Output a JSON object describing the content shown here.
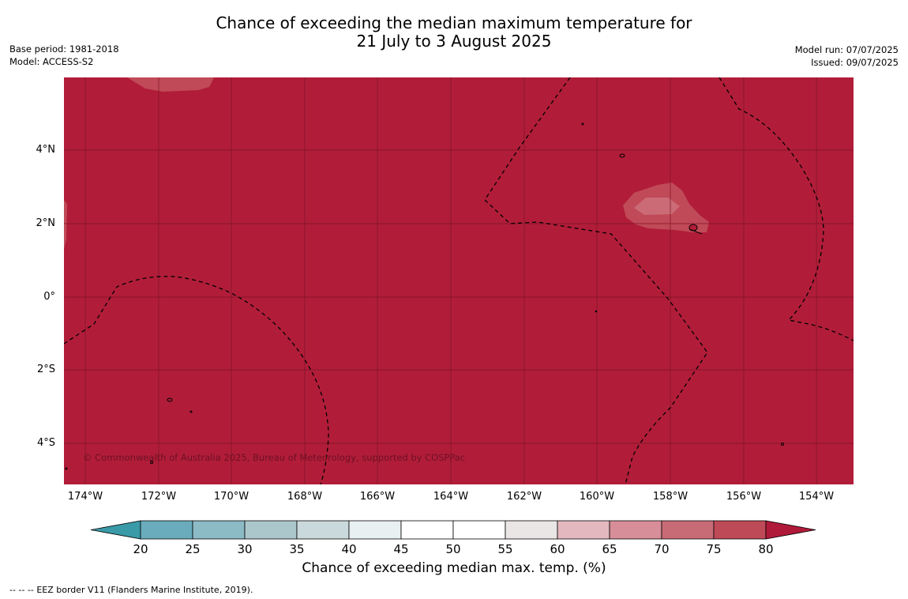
{
  "title": {
    "line1": "Chance of exceeding the median maximum temperature for",
    "line2": "21 July to 3 August 2025"
  },
  "meta_left": {
    "base_period": "Base period: 1981-2018",
    "model": "Model: ACCESS-S2"
  },
  "meta_right": {
    "model_run": "Model run: 07/07/2025",
    "issued": "Issued: 09/07/2025"
  },
  "map": {
    "copyright": "© Commonwealth of Australia 2025, Bureau of Meteorology, supported by COSPPac",
    "lat_labels": [
      "4°N",
      "2°N",
      "0°",
      "2°S",
      "4°S"
    ],
    "lon_labels": [
      "174°W",
      "172°W",
      "170°W",
      "168°W",
      "166°W",
      "164°W",
      "162°W",
      "160°W",
      "158°W",
      "156°W",
      "154°W"
    ],
    "colors": {
      "ocean_fill": "#b11d39",
      "contour_75": "#c14a58",
      "contour_70": "#cb6b76",
      "gridline": "#7a1328",
      "eez_border": "#000000"
    }
  },
  "colorbar": {
    "title": "Chance of exceeding median max. temp. (%)",
    "tick_labels": [
      "20",
      "25",
      "30",
      "35",
      "40",
      "45",
      "50",
      "55",
      "60",
      "65",
      "70",
      "75",
      "80"
    ],
    "colors": [
      "#3a9aa8",
      "#6aacbc",
      "#8cbac5",
      "#acc7cc",
      "#cad9dc",
      "#e8f0f1",
      "#ffffff",
      "#ffffff",
      "#ebe6e6",
      "#e3b8be",
      "#d78e98",
      "#c86b76",
      "#bf4a57",
      "#b01a3a"
    ]
  },
  "footer": {
    "legend_symbol": "-- -- --",
    "legend_text": "EEZ border V11 (Flanders Marine Institute, 2019)."
  }
}
